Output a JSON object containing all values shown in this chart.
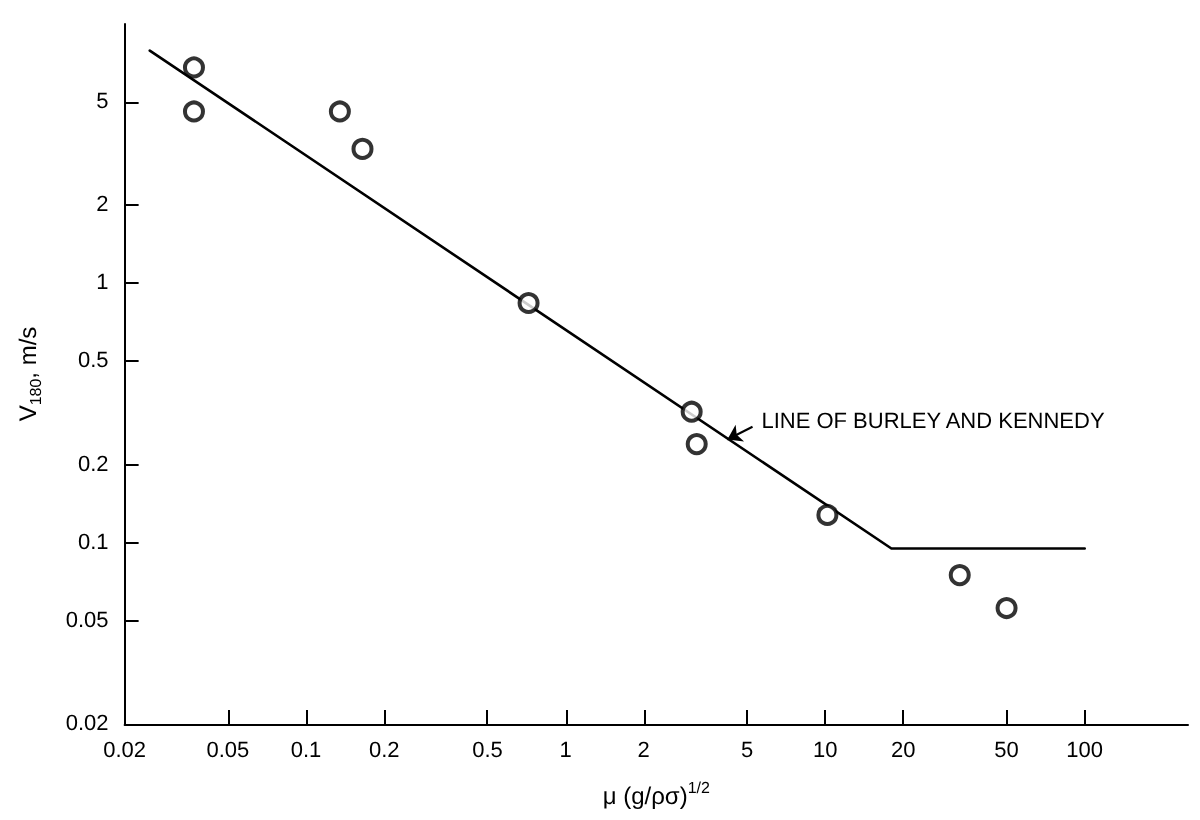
{
  "chart_data": {
    "type": "scatter",
    "xlabel": "μ (g/ρσ)$^{1/2}$",
    "ylabel": "V$_{180}$, m/s",
    "log": "xy",
    "grid": false,
    "marker": "circle",
    "xlim": [
      0.02,
      250
    ],
    "xticks": [
      0.02,
      0.05,
      0.1,
      0.2,
      0.5,
      1,
      2,
      5,
      10,
      20,
      50,
      100
    ],
    "ylim": [
      0.02,
      10
    ],
    "yticks": [
      0.02,
      0.05,
      0.1,
      0.2,
      0.5,
      1,
      2,
      5
    ],
    "series": [
      {
        "color": "#000000",
        "x": [
          0.037,
          0.037,
          0.135,
          0.165,
          0.72,
          3.06,
          3.2,
          10.2,
          33,
          50
        ],
        "values": [
          6.8,
          4.6,
          4.6,
          3.3,
          0.84,
          0.32,
          0.24,
          0.128,
          0.075,
          0.056
        ]
      },
      {
        "type": "line",
        "color": "#000000",
        "marker": "none",
        "line_style": "solid",
        "x": [
          0.025,
          18,
          100
        ],
        "values": [
          7.9,
          0.095,
          0.095
        ]
      }
    ],
    "annotations": [
      {
        "text": "LINE OF BURLEY AND KENNEDY",
        "x": 4.2,
        "y": 0.25
      }
    ]
  }
}
